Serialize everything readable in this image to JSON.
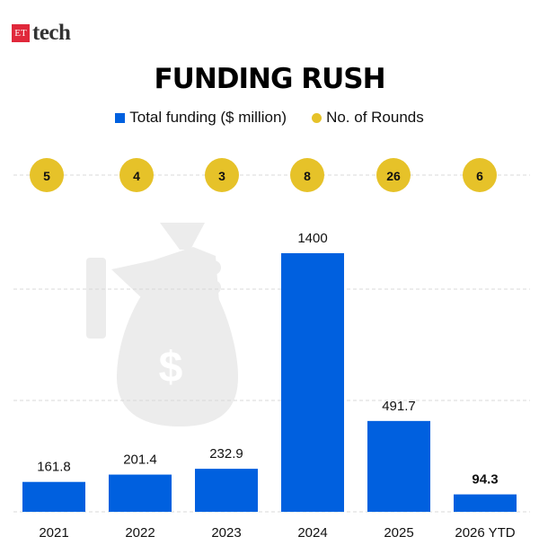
{
  "logo": {
    "prefix": "ET",
    "name": "tech"
  },
  "colors": {
    "bar": "#0060df",
    "rounds": "#e6c229",
    "grid": "#d8d8d8",
    "watermark": "#ececec"
  },
  "chart_data": {
    "type": "bar",
    "title": "FUNDING RUSH",
    "categories": [
      "2021",
      "2022",
      "2023",
      "2024",
      "2025",
      "2026 YTD"
    ],
    "series": [
      {
        "name": "Total funding ($ million)",
        "values": [
          161.8,
          201.4,
          232.9,
          1400,
          491.7,
          94.3
        ],
        "labels": [
          "161.8",
          "201.4",
          "232.9",
          "1400",
          "491.7",
          "94.3"
        ]
      },
      {
        "name": "No. of Rounds",
        "values": [
          5,
          4,
          3,
          8,
          26,
          6
        ]
      }
    ],
    "legend": "top-center",
    "grid": true,
    "watermark_icon": "money-bag-in-hand-icon"
  }
}
